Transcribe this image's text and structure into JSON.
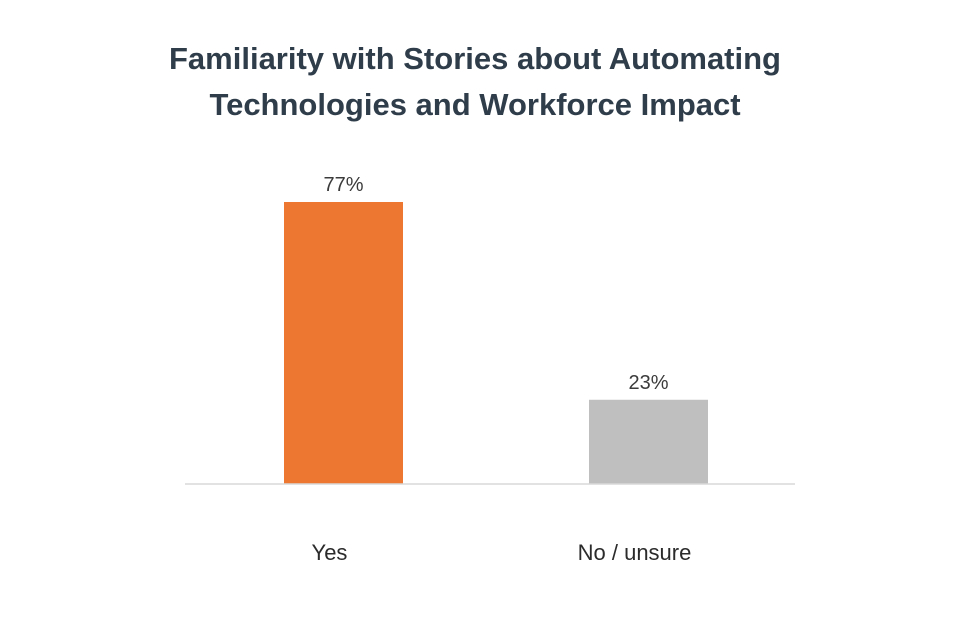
{
  "chart_data": {
    "type": "bar",
    "title": [
      "Familiarity with Stories about Automating",
      "Technologies and Workforce Impact"
    ],
    "categories": [
      "Yes",
      "No / unsure"
    ],
    "values": [
      77,
      23
    ],
    "data_labels": [
      "77%",
      "23%"
    ],
    "colors": [
      "#ED7730",
      "#BFBFBF"
    ],
    "ylim": [
      0,
      100
    ],
    "grid": false,
    "legend": "none"
  }
}
